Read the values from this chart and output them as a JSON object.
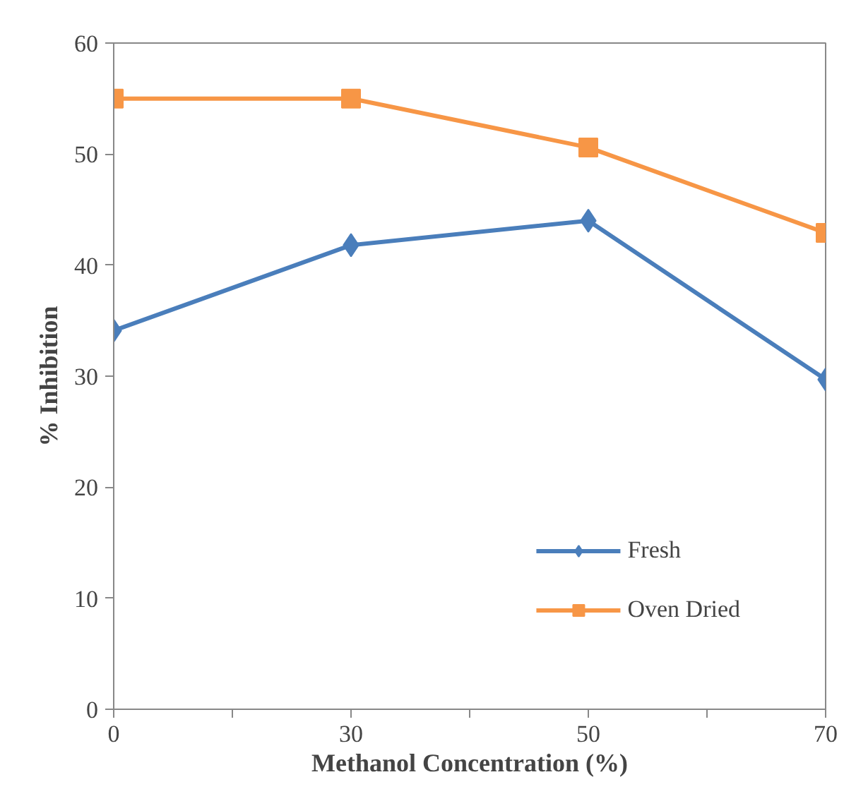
{
  "chart_data": {
    "type": "line",
    "xlabel": "Methanol Concentration (%)",
    "ylabel": "% Inhibition",
    "categories": [
      "0",
      "30",
      "50",
      "70"
    ],
    "ylim": [
      0,
      60
    ],
    "yticks": [
      0,
      10,
      20,
      30,
      40,
      50,
      60
    ],
    "grid": false,
    "legend": "bottom right",
    "series": [
      {
        "name": "Fresh",
        "color": "#4a7ebb",
        "marker": "diamond",
        "values": [
          34.1,
          41.8,
          44.0,
          29.7
        ]
      },
      {
        "name": "Oven Dried",
        "color": "#f79646",
        "marker": "square",
        "values": [
          55.0,
          55.0,
          50.6,
          42.9
        ]
      }
    ]
  }
}
